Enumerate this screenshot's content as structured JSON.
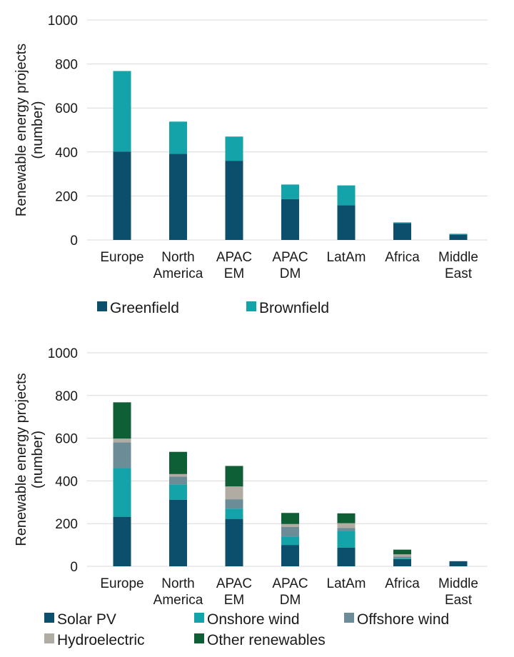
{
  "chart_data": [
    {
      "type": "bar",
      "stacked": true,
      "ylabel": "Renewable energy projects (number)",
      "ylabel_lines": [
        "Renewable energy projects",
        "(number)"
      ],
      "ylim": [
        0,
        1000
      ],
      "yticks": [
        "0",
        "200",
        "400",
        "600",
        "800",
        "1000"
      ],
      "grid": true,
      "legend_position": "bottom",
      "categories": [
        "Europe",
        "North America",
        "APAC EM",
        "APAC DM",
        "LatAm",
        "Africa",
        "Middle East"
      ],
      "category_lines": [
        [
          "Europe"
        ],
        [
          "North",
          "America"
        ],
        [
          "APAC",
          "EM"
        ],
        [
          "APAC",
          "DM"
        ],
        [
          "LatAm"
        ],
        [
          "Africa"
        ],
        [
          "Middle",
          "East"
        ]
      ],
      "series": [
        {
          "name": "Greenfield",
          "color": "#0b4f6c",
          "values": [
            402,
            392,
            360,
            186,
            158,
            76,
            24
          ]
        },
        {
          "name": "Brownfield",
          "color": "#14a3a8",
          "values": [
            366,
            146,
            110,
            66,
            90,
            4,
            4
          ]
        }
      ]
    },
    {
      "type": "bar",
      "stacked": true,
      "ylabel": "Renewable energy projects (number)",
      "ylabel_lines": [
        "Renewable energy projects",
        "(number)"
      ],
      "ylim": [
        0,
        1000
      ],
      "yticks": [
        "0",
        "200",
        "400",
        "600",
        "800",
        "1000"
      ],
      "grid": true,
      "legend_position": "bottom",
      "categories": [
        "Europe",
        "North America",
        "APAC EM",
        "APAC DM",
        "LatAm",
        "Africa",
        "Middle East"
      ],
      "category_lines": [
        [
          "Europe"
        ],
        [
          "North",
          "America"
        ],
        [
          "APAC",
          "EM"
        ],
        [
          "APAC",
          "DM"
        ],
        [
          "LatAm"
        ],
        [
          "Africa"
        ],
        [
          "Middle",
          "East"
        ]
      ],
      "series": [
        {
          "name": "Solar PV",
          "color": "#0b4f6c",
          "values": [
            232,
            312,
            222,
            100,
            88,
            34,
            24
          ]
        },
        {
          "name": "Onshore wind",
          "color": "#14a3a8",
          "values": [
            228,
            72,
            48,
            40,
            76,
            4,
            0
          ]
        },
        {
          "name": "Offshore wind",
          "color": "#6c8c97",
          "values": [
            120,
            36,
            44,
            44,
            16,
            8,
            0
          ]
        },
        {
          "name": "Hydroelectric",
          "color": "#b0aca4",
          "values": [
            18,
            12,
            60,
            14,
            22,
            10,
            0
          ]
        },
        {
          "name": "Other renewables",
          "color": "#0e5e36",
          "values": [
            170,
            104,
            96,
            52,
            46,
            22,
            0
          ]
        }
      ]
    }
  ]
}
